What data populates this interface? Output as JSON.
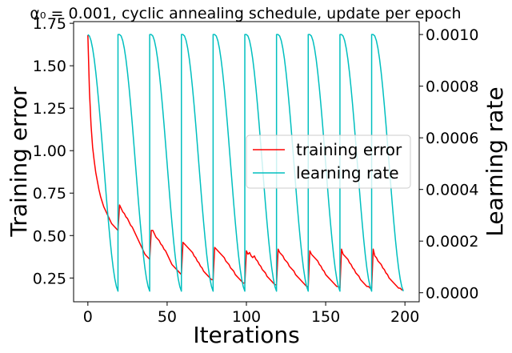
{
  "chart_data": {
    "type": "line",
    "title": "α₀ = 0.001, cyclic annealing schedule, update per epoch",
    "xlabel": "Iterations",
    "ylabel_left": "Training error",
    "ylabel_right": "Learning rate",
    "xlim": [
      -9,
      209
    ],
    "ylim_left": [
      0.11,
      1.76
    ],
    "ylim_right": [
      -3.5e-05,
      0.00105
    ],
    "x_ticks": [
      0,
      50,
      100,
      150,
      200
    ],
    "y_ticks_left": [
      0.25,
      0.5,
      0.75,
      1.0,
      1.25,
      1.5,
      1.75
    ],
    "y_tick_labels_left": [
      "0.25",
      "0.50",
      "0.75",
      "1.00",
      "1.25",
      "1.50",
      "1.75"
    ],
    "y_ticks_right": [
      0.0,
      0.0002,
      0.0004,
      0.0006,
      0.0008,
      0.001
    ],
    "y_tick_labels_right": [
      "0.0000",
      "0.0002",
      "0.0004",
      "0.0006",
      "0.0008",
      "0.0010"
    ],
    "grid": false,
    "legend_position": "center-right",
    "series": [
      {
        "name": "training error",
        "axis": "left",
        "color": "#ff0000",
        "x": [
          0,
          1,
          2,
          3,
          4,
          5,
          6,
          7,
          8,
          9,
          10,
          11,
          12,
          13,
          14,
          15,
          16,
          17,
          18,
          19,
          20,
          21,
          22,
          23,
          24,
          25,
          26,
          27,
          28,
          29,
          30,
          31,
          32,
          33,
          34,
          35,
          36,
          37,
          38,
          39,
          40,
          41,
          42,
          43,
          44,
          45,
          46,
          47,
          48,
          49,
          50,
          51,
          52,
          53,
          54,
          55,
          56,
          57,
          58,
          59,
          60,
          61,
          62,
          63,
          64,
          65,
          66,
          67,
          68,
          69,
          70,
          71,
          72,
          73,
          74,
          75,
          76,
          77,
          78,
          79,
          80,
          81,
          82,
          83,
          84,
          85,
          86,
          87,
          88,
          89,
          90,
          91,
          92,
          93,
          94,
          95,
          96,
          97,
          98,
          99,
          100,
          101,
          102,
          103,
          104,
          105,
          106,
          107,
          108,
          109,
          110,
          111,
          112,
          113,
          114,
          115,
          116,
          117,
          118,
          119,
          120,
          121,
          122,
          123,
          124,
          125,
          126,
          127,
          128,
          129,
          130,
          131,
          132,
          133,
          134,
          135,
          136,
          137,
          138,
          139,
          140,
          141,
          142,
          143,
          144,
          145,
          146,
          147,
          148,
          149,
          150,
          151,
          152,
          153,
          154,
          155,
          156,
          157,
          158,
          159,
          160,
          161,
          162,
          163,
          164,
          165,
          166,
          167,
          168,
          169,
          170,
          171,
          172,
          173,
          174,
          175,
          176,
          177,
          178,
          179,
          180,
          181,
          182,
          183,
          184,
          185,
          186,
          187,
          188,
          189,
          190,
          191,
          192,
          193,
          194,
          195,
          196,
          197,
          198,
          199
        ],
        "y": [
          1.68,
          1.35,
          1.15,
          1.02,
          0.94,
          0.87,
          0.82,
          0.77,
          0.73,
          0.7,
          0.67,
          0.65,
          0.63,
          0.61,
          0.59,
          0.57,
          0.56,
          0.55,
          0.54,
          0.53,
          0.68,
          0.66,
          0.64,
          0.63,
          0.61,
          0.6,
          0.58,
          0.56,
          0.55,
          0.53,
          0.51,
          0.49,
          0.47,
          0.45,
          0.43,
          0.41,
          0.39,
          0.38,
          0.37,
          0.36,
          0.53,
          0.53,
          0.51,
          0.49,
          0.48,
          0.47,
          0.45,
          0.44,
          0.42,
          0.41,
          0.39,
          0.37,
          0.35,
          0.33,
          0.32,
          0.31,
          0.3,
          0.29,
          0.28,
          0.27,
          0.46,
          0.45,
          0.44,
          0.43,
          0.42,
          0.41,
          0.4,
          0.38,
          0.37,
          0.35,
          0.34,
          0.32,
          0.31,
          0.29,
          0.28,
          0.27,
          0.26,
          0.25,
          0.24,
          0.24,
          0.43,
          0.42,
          0.41,
          0.4,
          0.39,
          0.38,
          0.37,
          0.35,
          0.34,
          0.33,
          0.31,
          0.3,
          0.29,
          0.27,
          0.26,
          0.25,
          0.24,
          0.23,
          0.22,
          0.22,
          0.41,
          0.39,
          0.4,
          0.38,
          0.37,
          0.38,
          0.36,
          0.35,
          0.33,
          0.32,
          0.3,
          0.29,
          0.28,
          0.26,
          0.25,
          0.24,
          0.23,
          0.22,
          0.21,
          0.21,
          0.42,
          0.4,
          0.39,
          0.38,
          0.36,
          0.35,
          0.34,
          0.32,
          0.31,
          0.3,
          0.29,
          0.27,
          0.26,
          0.25,
          0.24,
          0.23,
          0.22,
          0.21,
          0.2,
          0.2,
          0.41,
          0.39,
          0.38,
          0.37,
          0.36,
          0.35,
          0.33,
          0.32,
          0.3,
          0.29,
          0.27,
          0.26,
          0.25,
          0.24,
          0.23,
          0.22,
          0.21,
          0.2,
          0.2,
          0.19,
          0.42,
          0.39,
          0.38,
          0.37,
          0.36,
          0.34,
          0.33,
          0.31,
          0.3,
          0.28,
          0.27,
          0.26,
          0.24,
          0.23,
          0.22,
          0.21,
          0.2,
          0.2,
          0.19,
          0.19,
          0.42,
          0.38,
          0.37,
          0.35,
          0.34,
          0.33,
          0.31,
          0.3,
          0.28,
          0.27,
          0.25,
          0.24,
          0.23,
          0.22,
          0.21,
          0.2,
          0.19,
          0.19,
          0.18,
          0.18
        ]
      },
      {
        "name": "learning rate",
        "axis": "right",
        "color": "#00bfbf",
        "x": [
          0,
          1,
          2,
          3,
          4,
          5,
          6,
          7,
          8,
          9,
          10,
          11,
          12,
          13,
          14,
          15,
          16,
          17,
          18,
          19,
          19.001,
          20,
          21,
          22,
          23,
          24,
          25,
          26,
          27,
          28,
          29,
          30,
          31,
          32,
          33,
          34,
          35,
          36,
          37,
          38,
          39,
          39.001,
          40,
          41,
          42,
          43,
          44,
          45,
          46,
          47,
          48,
          49,
          50,
          51,
          52,
          53,
          54,
          55,
          56,
          57,
          58,
          59,
          59.001,
          60,
          61,
          62,
          63,
          64,
          65,
          66,
          67,
          68,
          69,
          70,
          71,
          72,
          73,
          74,
          75,
          76,
          77,
          78,
          79,
          79.001,
          80,
          81,
          82,
          83,
          84,
          85,
          86,
          87,
          88,
          89,
          90,
          91,
          92,
          93,
          94,
          95,
          96,
          97,
          98,
          99,
          99.001,
          100,
          101,
          102,
          103,
          104,
          105,
          106,
          107,
          108,
          109,
          110,
          111,
          112,
          113,
          114,
          115,
          116,
          117,
          118,
          119,
          119.001,
          120,
          121,
          122,
          123,
          124,
          125,
          126,
          127,
          128,
          129,
          130,
          131,
          132,
          133,
          134,
          135,
          136,
          137,
          138,
          139,
          139.001,
          140,
          141,
          142,
          143,
          144,
          145,
          146,
          147,
          148,
          149,
          150,
          151,
          152,
          153,
          154,
          155,
          156,
          157,
          158,
          159,
          159.001,
          160,
          161,
          162,
          163,
          164,
          165,
          166,
          167,
          168,
          169,
          170,
          171,
          172,
          173,
          174,
          175,
          176,
          177,
          178,
          179,
          179.001,
          180,
          181,
          182,
          183,
          184,
          185,
          186,
          187,
          188,
          189,
          190,
          191,
          192,
          193,
          194,
          195,
          196,
          197,
          198,
          199
        ],
        "y": [
          0.001,
          0.000994,
          0.000976,
          0.000946,
          0.000905,
          0.000854,
          0.000794,
          0.000727,
          0.000655,
          0.000578,
          0.0005,
          0.000422,
          0.000345,
          0.000273,
          0.000206,
          0.000146,
          9.5e-05,
          5.4e-05,
          2.4e-05,
          6e-06,
          0.001,
          0.001,
          0.000994,
          0.000976,
          0.000946,
          0.000905,
          0.000854,
          0.000794,
          0.000727,
          0.000655,
          0.000578,
          0.0005,
          0.000422,
          0.000345,
          0.000273,
          0.000206,
          0.000146,
          9.5e-05,
          5.4e-05,
          2.4e-05,
          6e-06,
          0.001,
          0.001,
          0.000994,
          0.000976,
          0.000946,
          0.000905,
          0.000854,
          0.000794,
          0.000727,
          0.000655,
          0.000578,
          0.0005,
          0.000422,
          0.000345,
          0.000273,
          0.000206,
          0.000146,
          9.5e-05,
          5.4e-05,
          2.4e-05,
          6e-06,
          0.001,
          0.001,
          0.000994,
          0.000976,
          0.000946,
          0.000905,
          0.000854,
          0.000794,
          0.000727,
          0.000655,
          0.000578,
          0.0005,
          0.000422,
          0.000345,
          0.000273,
          0.000206,
          0.000146,
          9.5e-05,
          5.4e-05,
          2.4e-05,
          6e-06,
          0.001,
          0.001,
          0.000994,
          0.000976,
          0.000946,
          0.000905,
          0.000854,
          0.000794,
          0.000727,
          0.000655,
          0.000578,
          0.0005,
          0.000422,
          0.000345,
          0.000273,
          0.000206,
          0.000146,
          9.5e-05,
          5.4e-05,
          2.4e-05,
          6e-06,
          0.001,
          0.001,
          0.000994,
          0.000976,
          0.000946,
          0.000905,
          0.000854,
          0.000794,
          0.000727,
          0.000655,
          0.000578,
          0.0005,
          0.000422,
          0.000345,
          0.000273,
          0.000206,
          0.000146,
          9.5e-05,
          5.4e-05,
          2.4e-05,
          6e-06,
          0.001,
          0.001,
          0.000994,
          0.000976,
          0.000946,
          0.000905,
          0.000854,
          0.000794,
          0.000727,
          0.000655,
          0.000578,
          0.0005,
          0.000422,
          0.000345,
          0.000273,
          0.000206,
          0.000146,
          9.5e-05,
          5.4e-05,
          2.4e-05,
          6e-06,
          0.001,
          0.001,
          0.000994,
          0.000976,
          0.000946,
          0.000905,
          0.000854,
          0.000794,
          0.000727,
          0.000655,
          0.000578,
          0.0005,
          0.000422,
          0.000345,
          0.000273,
          0.000206,
          0.000146,
          9.5e-05,
          5.4e-05,
          2.4e-05,
          6e-06,
          0.001,
          0.001,
          0.000994,
          0.000976,
          0.000946,
          0.000905,
          0.000854,
          0.000794,
          0.000727,
          0.000655,
          0.000578,
          0.0005,
          0.000422,
          0.000345,
          0.000273,
          0.000206,
          0.000146,
          9.5e-05,
          5.4e-05,
          2.4e-05,
          6e-06,
          0.001,
          0.001,
          0.000994,
          0.000976,
          0.000946,
          0.000905,
          0.000854,
          0.000794,
          0.000727,
          0.000655,
          0.000578,
          0.0005,
          0.000422,
          0.000345,
          0.000273,
          0.000206,
          0.000146,
          9.5e-05,
          5.4e-05,
          2.4e-05,
          6e-06
        ]
      }
    ]
  }
}
